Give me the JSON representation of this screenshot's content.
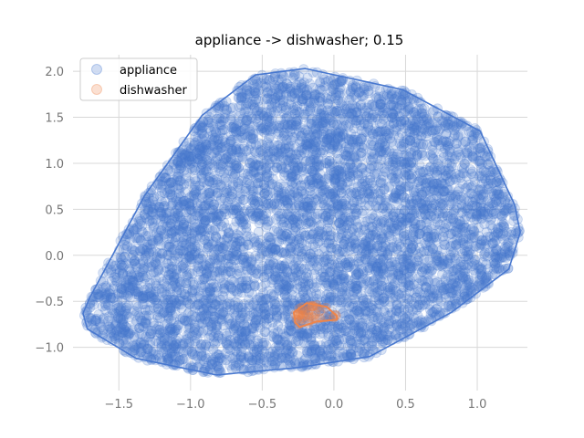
{
  "chart_data": {
    "type": "scatter",
    "title": "appliance -> dishwasher; 0.15",
    "xlabel": "",
    "ylabel": "",
    "xlim": [
      -1.82,
      1.35
    ],
    "ylim": [
      -1.47,
      2.18
    ],
    "xticks": [
      -1.5,
      -1.0,
      -0.5,
      0.0,
      0.5,
      1.0
    ],
    "xtick_labels": [
      "−1.5",
      "−1.0",
      "−0.5",
      "0.0",
      "0.5",
      "1.0"
    ],
    "yticks": [
      -1.0,
      -0.5,
      0.0,
      0.5,
      1.0,
      1.5,
      2.0
    ],
    "ytick_labels": [
      "−1.0",
      "−0.5",
      "0.0",
      "0.5",
      "1.0",
      "1.5",
      "2.0"
    ],
    "grid": true,
    "legend": {
      "position": "top-left",
      "entries": [
        "appliance",
        "dishwasher"
      ]
    },
    "series": [
      {
        "name": "appliance",
        "color": "#4878cf",
        "point_count_estimate": 6000,
        "hull": [
          [
            -1.75,
            -0.63
          ],
          [
            -1.7,
            -0.45
          ],
          [
            -1.32,
            0.65
          ],
          [
            -0.92,
            1.52
          ],
          [
            -0.55,
            1.96
          ],
          [
            -0.2,
            2.03
          ],
          [
            0.48,
            1.8
          ],
          [
            1.02,
            1.35
          ],
          [
            1.26,
            0.55
          ],
          [
            1.3,
            0.25
          ],
          [
            1.22,
            -0.15
          ],
          [
            0.82,
            -0.62
          ],
          [
            0.25,
            -1.1
          ],
          [
            -0.25,
            -1.22
          ],
          [
            -0.82,
            -1.3
          ],
          [
            -1.38,
            -1.12
          ],
          [
            -1.72,
            -0.8
          ]
        ]
      },
      {
        "name": "dishwasher",
        "color": "#ee854a",
        "point_count_estimate": 40,
        "hull": [
          [
            -0.28,
            -0.62
          ],
          [
            -0.19,
            -0.52
          ],
          [
            -0.05,
            -0.56
          ],
          [
            0.02,
            -0.66
          ],
          [
            0.02,
            -0.7
          ],
          [
            -0.12,
            -0.72
          ],
          [
            -0.24,
            -0.78
          ],
          [
            -0.27,
            -0.73
          ]
        ]
      }
    ]
  }
}
